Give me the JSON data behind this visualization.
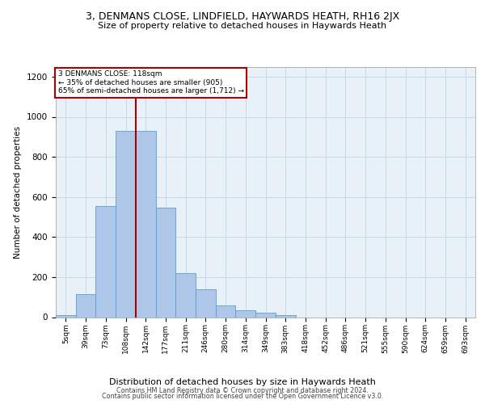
{
  "title1": "3, DENMANS CLOSE, LINDFIELD, HAYWARDS HEATH, RH16 2JX",
  "title2": "Size of property relative to detached houses in Haywards Heath",
  "xlabel": "Distribution of detached houses by size in Haywards Heath",
  "ylabel": "Number of detached properties",
  "footer1": "Contains HM Land Registry data © Crown copyright and database right 2024.",
  "footer2": "Contains public sector information licensed under the Open Government Licence v3.0.",
  "annotation_title": "3 DENMANS CLOSE: 118sqm",
  "annotation_line1": "← 35% of detached houses are smaller (905)",
  "annotation_line2": "65% of semi-detached houses are larger (1,712) →",
  "bar_values": [
    10,
    115,
    555,
    930,
    930,
    545,
    220,
    140,
    60,
    35,
    22,
    10,
    0,
    0,
    0,
    0,
    0,
    0,
    0,
    0,
    0
  ],
  "categories": [
    "5sqm",
    "39sqm",
    "73sqm",
    "108sqm",
    "142sqm",
    "177sqm",
    "211sqm",
    "246sqm",
    "280sqm",
    "314sqm",
    "349sqm",
    "383sqm",
    "418sqm",
    "452sqm",
    "486sqm",
    "521sqm",
    "555sqm",
    "590sqm",
    "624sqm",
    "659sqm",
    "693sqm"
  ],
  "bar_color": "#aec6e8",
  "bar_edge_color": "#5a9fd4",
  "grid_color": "#c8d8e8",
  "background_color": "#e8f0f8",
  "vline_x": 3.52,
  "vline_color": "#aa0000",
  "annotation_box_color": "#aa0000",
  "ylim": [
    0,
    1250
  ],
  "yticks": [
    0,
    200,
    400,
    600,
    800,
    1000,
    1200
  ]
}
